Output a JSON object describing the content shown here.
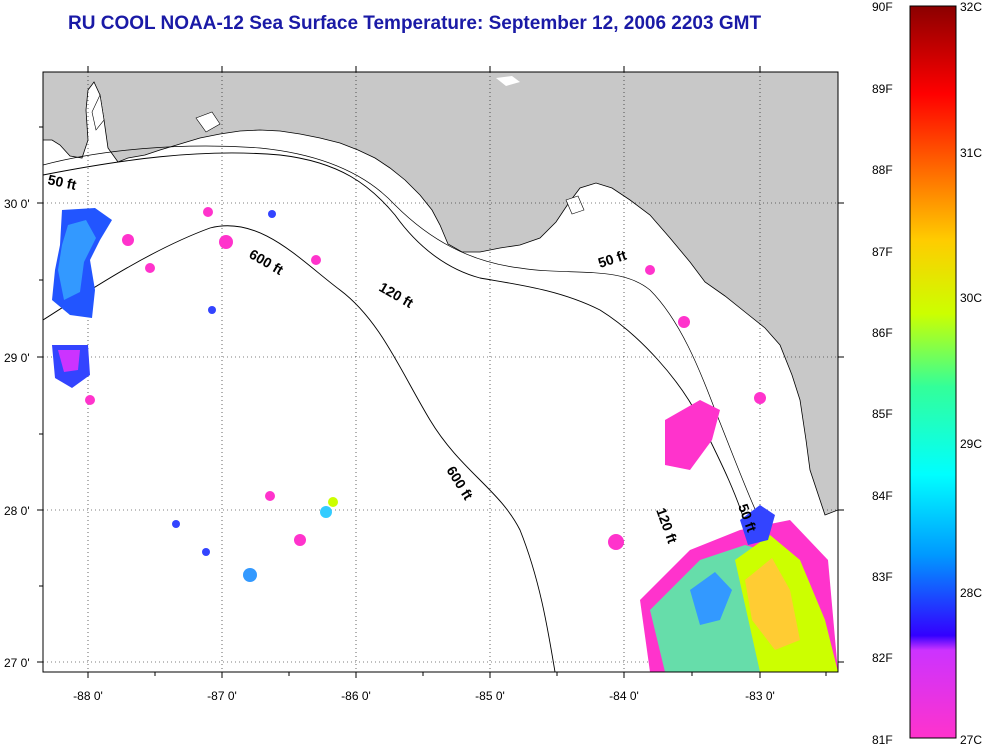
{
  "title": "RU COOL  NOAA-12  Sea Surface Temperature:  September 12, 2006 2203 GMT",
  "map": {
    "lat_labels": [
      "30 0'",
      "29 0'",
      "28 0'",
      "27 0'"
    ],
    "lon_labels": [
      "-88 0'",
      "-87 0'",
      "-86 0'",
      "-85 0'",
      "-84 0'",
      "-83 0'"
    ],
    "depth_labels": [
      "50 ft",
      "600 ft",
      "120 ft",
      "50 ft",
      "600 ft",
      "120 ft",
      "50 ft"
    ]
  },
  "colorbar": {
    "fahrenheit": [
      "90F",
      "89F",
      "88F",
      "87F",
      "86F",
      "85F",
      "84F",
      "83F",
      "82F",
      "81F"
    ],
    "celsius": [
      "32C",
      "31C",
      "30C",
      "29C",
      "28C",
      "27C"
    ]
  },
  "colors": {
    "title": "#1a1aa6",
    "land": "#c8c8c8",
    "ocean": "#ffffff",
    "warm_min": "#ff33cc",
    "warm_max": "#8b0000"
  }
}
